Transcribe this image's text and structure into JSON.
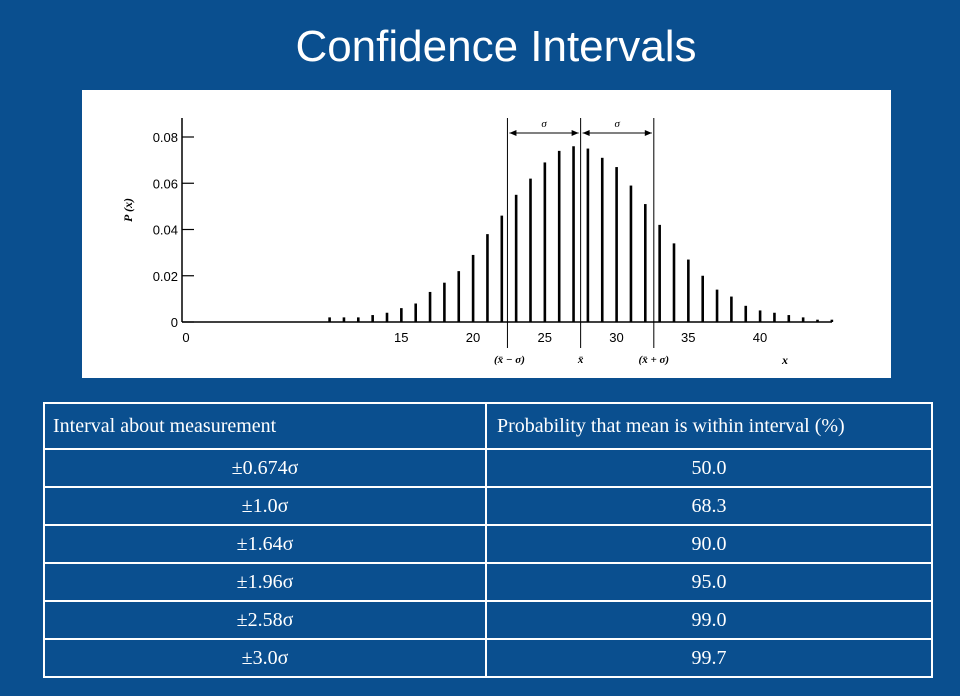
{
  "slide": {
    "title": "Confidence Intervals"
  },
  "colors": {
    "background": "#0a4f8f",
    "panel": "#ffffff",
    "ink": "#000000"
  },
  "chart_data": {
    "type": "bar",
    "ylabel": "P (x)",
    "xlabel": "x",
    "x_ticks": [
      0,
      15,
      20,
      25,
      30,
      35,
      40
    ],
    "y_ticks": [
      "0",
      "0.02",
      "0.04",
      "0.06",
      "0.08"
    ],
    "y_tick_values": [
      0,
      0.02,
      0.04,
      0.06,
      0.08
    ],
    "ylim": [
      0,
      0.083
    ],
    "grid": false,
    "x": [
      10,
      11,
      12,
      13,
      14,
      15,
      16,
      17,
      18,
      19,
      20,
      21,
      22,
      23,
      24,
      25,
      26,
      27,
      28,
      29,
      30,
      31,
      32,
      33,
      34,
      35,
      36,
      37,
      38,
      39,
      40,
      41,
      42,
      43,
      44,
      45
    ],
    "values": [
      0.002,
      0.002,
      0.002,
      0.003,
      0.004,
      0.006,
      0.008,
      0.013,
      0.017,
      0.022,
      0.029,
      0.038,
      0.046,
      0.055,
      0.062,
      0.069,
      0.074,
      0.076,
      0.075,
      0.071,
      0.067,
      0.059,
      0.051,
      0.042,
      0.034,
      0.027,
      0.02,
      0.014,
      0.011,
      0.007,
      0.005,
      0.004,
      0.003,
      0.002,
      0.001,
      0.001
    ],
    "mean": 27.5,
    "sigma": 5.1,
    "annotations": {
      "sigma_label": "σ",
      "minus_label": "(x̄ − σ)",
      "mean_label": "x̄",
      "plus_label": "(x̄ + σ)"
    }
  },
  "table": {
    "headers": [
      "Interval about measurement",
      "Probability that mean is within interval (%)"
    ],
    "rows": [
      [
        "±0.674σ",
        "50.0"
      ],
      [
        "±1.0σ",
        "68.3"
      ],
      [
        "±1.64σ",
        "90.0"
      ],
      [
        "±1.96σ",
        "95.0"
      ],
      [
        "±2.58σ",
        "99.0"
      ],
      [
        "±3.0σ",
        "99.7"
      ]
    ]
  }
}
